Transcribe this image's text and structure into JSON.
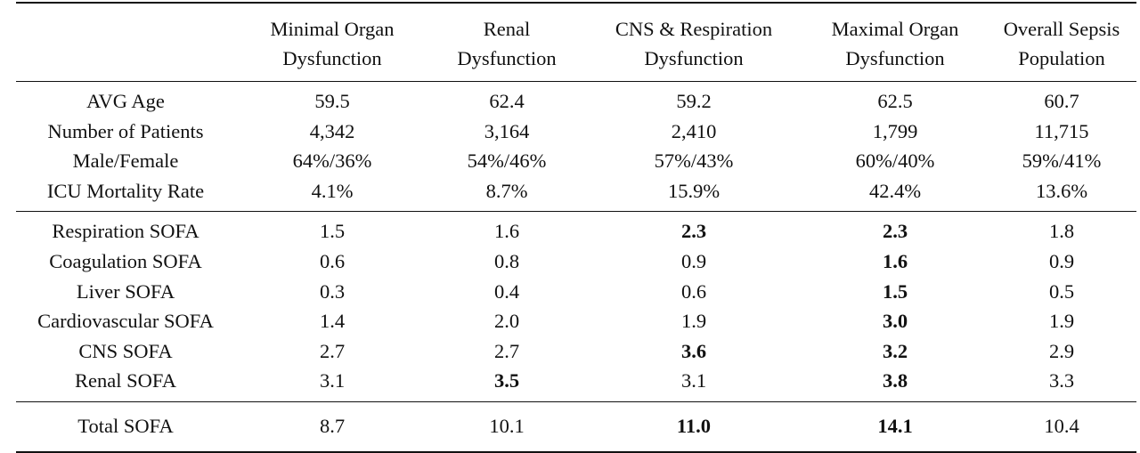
{
  "columns": [
    {
      "line1": "Minimal Organ",
      "line2": "Dysfunction"
    },
    {
      "line1": "Renal",
      "line2": "Dysfunction"
    },
    {
      "line1": "CNS & Respiration",
      "line2": "Dysfunction"
    },
    {
      "line1": "Maximal Organ",
      "line2": "Dysfunction"
    },
    {
      "line1": "Overall Sepsis",
      "line2": "Population"
    }
  ],
  "demographics": [
    {
      "label": "AVG Age",
      "values": [
        "59.5",
        "62.4",
        "59.2",
        "62.5",
        "60.7"
      ],
      "bold": [
        false,
        false,
        false,
        false,
        false
      ]
    },
    {
      "label": "Number of Patients",
      "values": [
        "4,342",
        "3,164",
        "2,410",
        "1,799",
        "11,715"
      ],
      "bold": [
        false,
        false,
        false,
        false,
        false
      ]
    },
    {
      "label": "Male/Female",
      "values": [
        "64%/36%",
        "54%/46%",
        "57%/43%",
        "60%/40%",
        "59%/41%"
      ],
      "bold": [
        false,
        false,
        false,
        false,
        false
      ]
    },
    {
      "label": "ICU Mortality Rate",
      "values": [
        "4.1%",
        "8.7%",
        "15.9%",
        "42.4%",
        "13.6%"
      ],
      "bold": [
        false,
        false,
        false,
        false,
        false
      ]
    }
  ],
  "sofa": [
    {
      "label": "Respiration SOFA",
      "values": [
        "1.5",
        "1.6",
        "2.3",
        "2.3",
        "1.8"
      ],
      "bold": [
        false,
        false,
        true,
        true,
        false
      ]
    },
    {
      "label": "Coagulation SOFA",
      "values": [
        "0.6",
        "0.8",
        "0.9",
        "1.6",
        "0.9"
      ],
      "bold": [
        false,
        false,
        false,
        true,
        false
      ]
    },
    {
      "label": "Liver SOFA",
      "values": [
        "0.3",
        "0.4",
        "0.6",
        "1.5",
        "0.5"
      ],
      "bold": [
        false,
        false,
        false,
        true,
        false
      ]
    },
    {
      "label": "Cardiovascular SOFA",
      "values": [
        "1.4",
        "2.0",
        "1.9",
        "3.0",
        "1.9"
      ],
      "bold": [
        false,
        false,
        false,
        true,
        false
      ]
    },
    {
      "label": "CNS SOFA",
      "values": [
        "2.7",
        "2.7",
        "3.6",
        "3.2",
        "2.9"
      ],
      "bold": [
        false,
        false,
        true,
        true,
        false
      ]
    },
    {
      "label": "Renal SOFA",
      "values": [
        "3.1",
        "3.5",
        "3.1",
        "3.8",
        "3.3"
      ],
      "bold": [
        false,
        true,
        false,
        true,
        false
      ]
    }
  ],
  "total": [
    {
      "label": "Total SOFA",
      "values": [
        "8.7",
        "10.1",
        "11.0",
        "14.1",
        "10.4"
      ],
      "bold": [
        false,
        false,
        true,
        true,
        false
      ]
    }
  ]
}
